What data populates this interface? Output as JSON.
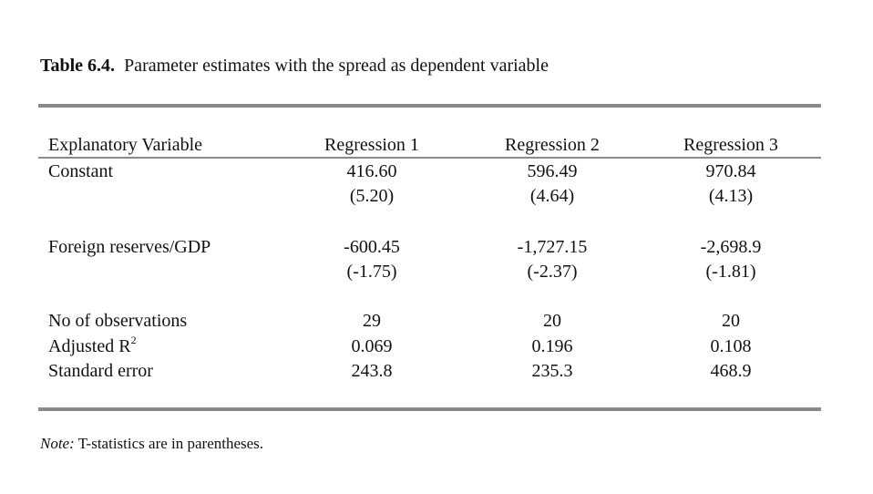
{
  "title": {
    "label": "Table 6.4.",
    "text": "Parameter estimates with the spread as dependent variable"
  },
  "table": {
    "headers": [
      "Explanatory Variable",
      "Regression 1",
      "Regression 2",
      "Regression 3"
    ],
    "rows": [
      {
        "label": "Constant",
        "values": [
          "416.60",
          "596.49",
          "970.84"
        ]
      },
      {
        "label": "",
        "values": [
          "(5.20)",
          "(4.64)",
          "(4.13)"
        ]
      },
      {
        "label": "Foreign reserves/GDP",
        "values": [
          "-600.45",
          "-1,727.15",
          "-2,698.9"
        ]
      },
      {
        "label": "",
        "values": [
          "(-1.75)",
          "(-2.37)",
          "(-1.81)"
        ]
      },
      {
        "label": "No of observations",
        "values": [
          "29",
          "20",
          "20"
        ]
      },
      {
        "label": "Adjusted R",
        "sup": "2",
        "values": [
          "0.069",
          "0.196",
          "0.108"
        ]
      },
      {
        "label": "Standard error",
        "values": [
          "243.8",
          "235.3",
          "468.9"
        ]
      }
    ]
  },
  "note": {
    "label": "Note:",
    "text": "T-statistics are in parentheses."
  }
}
